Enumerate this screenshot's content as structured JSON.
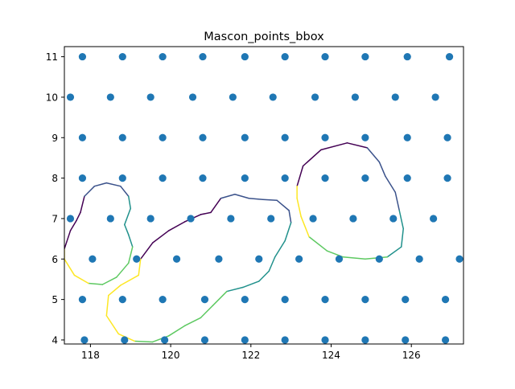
{
  "chart_data": {
    "type": "scatter",
    "title": "Mascon_points_bbox",
    "xlabel": "",
    "ylabel": "",
    "xlim": [
      117.35,
      127.3
    ],
    "ylim": [
      3.9,
      11.25
    ],
    "x_ticks": [
      118,
      120,
      122,
      124,
      126
    ],
    "y_ticks": [
      4,
      5,
      6,
      7,
      8,
      9,
      10,
      11
    ],
    "x_tick_labels": [
      "118",
      "120",
      "122",
      "124",
      "126"
    ],
    "y_tick_labels": [
      "4",
      "5",
      "6",
      "7",
      "8",
      "9",
      "10",
      "11"
    ],
    "grid": false,
    "legend": "none",
    "point_color": "#1f77b4",
    "points": [
      [
        117.8,
        11
      ],
      [
        118.8,
        11
      ],
      [
        119.8,
        11
      ],
      [
        120.8,
        11
      ],
      [
        121.85,
        11
      ],
      [
        122.85,
        11
      ],
      [
        123.85,
        11
      ],
      [
        124.85,
        11
      ],
      [
        125.9,
        11
      ],
      [
        126.95,
        11
      ],
      [
        117.5,
        10
      ],
      [
        118.5,
        10
      ],
      [
        119.5,
        10
      ],
      [
        120.55,
        10
      ],
      [
        121.55,
        10
      ],
      [
        122.55,
        10
      ],
      [
        123.6,
        10
      ],
      [
        124.6,
        10
      ],
      [
        125.6,
        10
      ],
      [
        126.6,
        10
      ],
      [
        117.8,
        9
      ],
      [
        118.8,
        9
      ],
      [
        119.8,
        9
      ],
      [
        120.8,
        9
      ],
      [
        121.85,
        9
      ],
      [
        122.85,
        9
      ],
      [
        123.85,
        9
      ],
      [
        124.85,
        9
      ],
      [
        125.9,
        9
      ],
      [
        126.9,
        9
      ],
      [
        117.8,
        8
      ],
      [
        118.8,
        8
      ],
      [
        119.8,
        8
      ],
      [
        120.8,
        8
      ],
      [
        121.85,
        8
      ],
      [
        122.85,
        8
      ],
      [
        123.85,
        8
      ],
      [
        124.85,
        8
      ],
      [
        125.9,
        8
      ],
      [
        126.9,
        8
      ],
      [
        117.5,
        7
      ],
      [
        118.5,
        7
      ],
      [
        119.5,
        7
      ],
      [
        120.5,
        7
      ],
      [
        121.5,
        7
      ],
      [
        122.5,
        7
      ],
      [
        123.55,
        7
      ],
      [
        124.55,
        7
      ],
      [
        125.55,
        7
      ],
      [
        126.55,
        7
      ],
      [
        118.05,
        6
      ],
      [
        119.15,
        6
      ],
      [
        120.15,
        6
      ],
      [
        121.2,
        6
      ],
      [
        122.2,
        6
      ],
      [
        123.2,
        6
      ],
      [
        124.2,
        6
      ],
      [
        125.2,
        6
      ],
      [
        126.2,
        6
      ],
      [
        127.2,
        6
      ],
      [
        117.8,
        5
      ],
      [
        118.8,
        5
      ],
      [
        119.8,
        5
      ],
      [
        120.85,
        5
      ],
      [
        121.85,
        5
      ],
      [
        122.85,
        5
      ],
      [
        123.85,
        5
      ],
      [
        124.85,
        5
      ],
      [
        125.85,
        5
      ],
      [
        126.85,
        5
      ],
      [
        117.85,
        4
      ],
      [
        118.85,
        4
      ],
      [
        119.85,
        4
      ],
      [
        120.85,
        4
      ],
      [
        121.85,
        4
      ],
      [
        122.85,
        4
      ],
      [
        123.85,
        4
      ],
      [
        124.85,
        4
      ],
      [
        125.85,
        4
      ],
      [
        126.85,
        4
      ]
    ],
    "contours": [
      {
        "name": "",
        "colors": [
          "#440154",
          "#3b528b",
          "#21918c",
          "#5ec962",
          "#fde725"
        ],
        "path": [
          [
            117.35,
            6.25
          ],
          [
            117.5,
            6.7
          ],
          [
            117.65,
            6.95
          ],
          [
            117.75,
            7.15
          ],
          [
            117.85,
            7.55
          ],
          [
            118.1,
            7.8
          ],
          [
            118.4,
            7.88
          ],
          [
            118.75,
            7.8
          ],
          [
            118.95,
            7.55
          ],
          [
            119.0,
            7.25
          ],
          [
            118.85,
            6.85
          ],
          [
            118.95,
            6.6
          ],
          [
            119.05,
            6.3
          ],
          [
            118.95,
            5.9
          ],
          [
            118.65,
            5.55
          ],
          [
            118.3,
            5.37
          ],
          [
            117.95,
            5.4
          ],
          [
            117.6,
            5.6
          ],
          [
            117.35,
            6.0
          ]
        ]
      },
      {
        "name": "",
        "colors": [
          "#440154",
          "#3b528b",
          "#21918c",
          "#5ec962",
          "#fde725"
        ],
        "path": [
          [
            119.25,
            6.0
          ],
          [
            119.55,
            6.4
          ],
          [
            119.95,
            6.7
          ],
          [
            120.35,
            6.92
          ],
          [
            120.75,
            7.1
          ],
          [
            121.0,
            7.15
          ],
          [
            121.25,
            7.5
          ],
          [
            121.6,
            7.6
          ],
          [
            121.95,
            7.5
          ],
          [
            122.3,
            7.47
          ],
          [
            122.65,
            7.45
          ],
          [
            122.95,
            7.2
          ],
          [
            123.0,
            6.9
          ],
          [
            122.85,
            6.45
          ],
          [
            122.6,
            6.05
          ],
          [
            122.45,
            5.7
          ],
          [
            122.2,
            5.45
          ],
          [
            121.8,
            5.3
          ],
          [
            121.4,
            5.2
          ],
          [
            121.05,
            4.85
          ],
          [
            120.75,
            4.55
          ],
          [
            120.35,
            4.35
          ],
          [
            119.95,
            4.1
          ],
          [
            119.55,
            3.95
          ],
          [
            119.1,
            3.97
          ],
          [
            118.7,
            4.15
          ],
          [
            118.4,
            4.6
          ],
          [
            118.45,
            5.1
          ],
          [
            118.75,
            5.35
          ],
          [
            119.2,
            5.6
          ]
        ]
      },
      {
        "name": "",
        "colors": [
          "#440154",
          "#3b528b",
          "#21918c",
          "#5ec962",
          "#fde725"
        ],
        "path": [
          [
            123.15,
            7.8
          ],
          [
            123.3,
            8.3
          ],
          [
            123.75,
            8.7
          ],
          [
            124.4,
            8.87
          ],
          [
            124.9,
            8.75
          ],
          [
            125.2,
            8.4
          ],
          [
            125.35,
            8.05
          ],
          [
            125.6,
            7.65
          ],
          [
            125.7,
            7.2
          ],
          [
            125.8,
            6.75
          ],
          [
            125.75,
            6.3
          ],
          [
            125.4,
            6.05
          ],
          [
            124.85,
            6.0
          ],
          [
            124.3,
            6.05
          ],
          [
            123.9,
            6.2
          ],
          [
            123.45,
            6.55
          ],
          [
            123.25,
            7.05
          ],
          [
            123.15,
            7.5
          ]
        ]
      }
    ]
  }
}
